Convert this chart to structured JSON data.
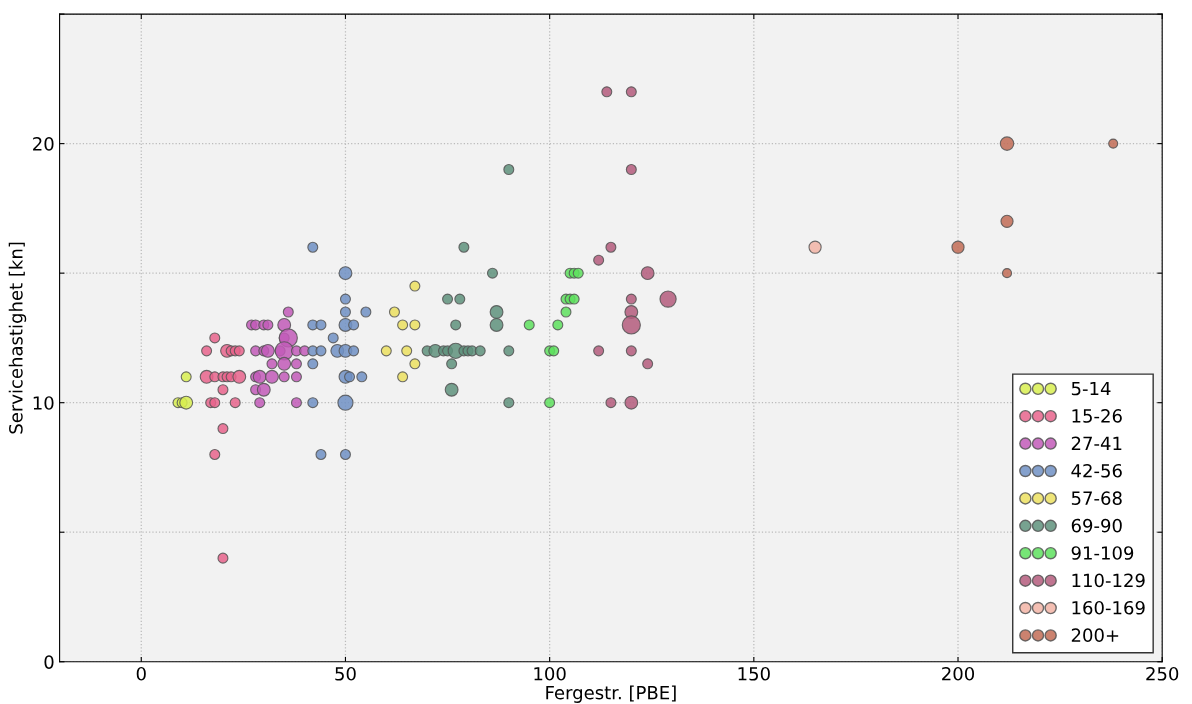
{
  "chart_data": {
    "type": "bubble",
    "xlabel": "Fergestr. [PBE]",
    "ylabel": "Servicehastighet [kn]",
    "xlim": [
      -20,
      250
    ],
    "xticks": [
      0,
      50,
      100,
      150,
      200,
      250
    ],
    "ylim": [
      0,
      25
    ],
    "yticks": [
      0,
      {
        "value": 5,
        "label": null
      },
      10,
      {
        "value": 15,
        "label": null
      },
      20,
      {
        "value": 25,
        "label": null
      }
    ],
    "grid": true,
    "legend": "bottom right",
    "marker": "circle",
    "series": [
      {
        "name": "5-14",
        "color": "#d8ee50",
        "x": [
          9,
          10,
          11,
          11
        ],
        "values": [
          10,
          10,
          10,
          11
        ],
        "sizes": [
          0.3,
          0.3,
          0.5,
          0.3
        ]
      },
      {
        "name": "15-26",
        "color": "#e8648c",
        "x": [
          18,
          16,
          21,
          22,
          23,
          24,
          16,
          18,
          20,
          21,
          22,
          24,
          20,
          17,
          18,
          23,
          20,
          18,
          20
        ],
        "values": [
          12.5,
          12,
          12,
          12,
          12,
          12,
          11,
          11,
          11,
          11,
          11,
          11,
          10.5,
          10,
          10,
          10,
          9,
          8,
          4
        ],
        "sizes": [
          0.3,
          0.3,
          0.5,
          0.3,
          0.3,
          0.3,
          0.5,
          0.3,
          0.3,
          0.3,
          0.3,
          0.5,
          0.3,
          0.3,
          0.3,
          0.3,
          0.3,
          0.3,
          0.3
        ]
      },
      {
        "name": "27-41",
        "color": "#c25ab8",
        "x": [
          27,
          28,
          30,
          31,
          35,
          36,
          35,
          36,
          28,
          30,
          31,
          34,
          35,
          38,
          40,
          32,
          35,
          38,
          28,
          29,
          32,
          35,
          38,
          28,
          30,
          29,
          38
        ],
        "values": [
          13,
          13,
          13,
          13,
          13,
          13.5,
          12.5,
          12.5,
          12,
          12,
          12,
          12,
          12,
          12,
          12,
          11.5,
          11.5,
          11.5,
          11,
          11,
          11,
          11,
          11,
          10.5,
          10.5,
          10,
          10
        ],
        "sizes": [
          0.3,
          0.3,
          0.3,
          0.3,
          0.5,
          0.3,
          0.3,
          1,
          0.3,
          0.3,
          0.5,
          0.3,
          1,
          0.3,
          0.3,
          0.3,
          0.5,
          0.3,
          0.3,
          0.5,
          0.5,
          0.3,
          0.3,
          0.3,
          0.5,
          0.3,
          0.3
        ]
      },
      {
        "name": "42-56",
        "color": "#7090c4",
        "x": [
          42,
          50,
          50,
          55,
          50,
          42,
          44,
          50,
          52,
          47,
          42,
          44,
          48,
          50,
          52,
          42,
          50,
          51,
          54,
          42,
          50,
          44,
          50
        ],
        "values": [
          16,
          15,
          14,
          13.5,
          13.5,
          13,
          13,
          13,
          13,
          12.5,
          12,
          12,
          12,
          12,
          12,
          11.5,
          11,
          11,
          11,
          10,
          10,
          8,
          8
        ],
        "sizes": [
          0.3,
          0.5,
          0.3,
          0.3,
          0.3,
          0.3,
          0.3,
          0.5,
          0.3,
          0.3,
          0.3,
          0.3,
          0.5,
          0.5,
          0.3,
          0.3,
          0.5,
          0.3,
          0.3,
          0.3,
          0.7,
          0.3,
          0.3
        ]
      },
      {
        "name": "57-68",
        "color": "#ece060",
        "x": [
          67,
          62,
          64,
          67,
          60,
          65,
          67,
          64
        ],
        "values": [
          14.5,
          13.5,
          13,
          13,
          12,
          12,
          11.5,
          11
        ],
        "sizes": [
          0.3,
          0.3,
          0.3,
          0.3,
          0.3,
          0.3,
          0.3,
          0.3
        ]
      },
      {
        "name": "69-90",
        "color": "#5f927c",
        "x": [
          90,
          79,
          86,
          75,
          78,
          87,
          77,
          87,
          70,
          72,
          74,
          75,
          77,
          79,
          80,
          81,
          83,
          90,
          76,
          76,
          90
        ],
        "values": [
          19,
          16,
          15,
          14,
          14,
          13.5,
          13,
          13,
          12,
          12,
          12,
          12,
          12,
          12,
          12,
          12,
          12,
          12,
          11.5,
          10.5,
          10
        ],
        "sizes": [
          0.3,
          0.3,
          0.3,
          0.3,
          0.3,
          0.5,
          0.3,
          0.5,
          0.3,
          0.5,
          0.3,
          0.3,
          0.7,
          0.3,
          0.3,
          0.3,
          0.3,
          0.3,
          0.3,
          0.5,
          0.3
        ]
      },
      {
        "name": "91-109",
        "color": "#5ee05e",
        "x": [
          105,
          106,
          107,
          104,
          105,
          106,
          104,
          95,
          102,
          100,
          101,
          100
        ],
        "values": [
          15,
          15,
          15,
          14,
          14,
          14,
          13.5,
          13,
          13,
          12,
          12,
          10
        ],
        "sizes": [
          0.3,
          0.3,
          0.3,
          0.3,
          0.3,
          0.3,
          0.3,
          0.3,
          0.3,
          0.3,
          0.3,
          0.3
        ]
      },
      {
        "name": "110-129",
        "color": "#b45c7c",
        "x": [
          114,
          120,
          120,
          115,
          112,
          124,
          120,
          129,
          120,
          120,
          112,
          120,
          124,
          115,
          120
        ],
        "values": [
          22,
          22,
          19,
          16,
          15.5,
          15,
          14,
          14,
          13.5,
          13,
          12,
          12,
          11.5,
          10,
          10
        ],
        "sizes": [
          0.3,
          0.3,
          0.3,
          0.3,
          0.3,
          0.5,
          0.3,
          0.8,
          0.5,
          1,
          0.3,
          0.3,
          0.3,
          0.3,
          0.5
        ]
      },
      {
        "name": "160-169",
        "color": "#f2b4a6",
        "x": [
          165
        ],
        "values": [
          16
        ],
        "sizes": [
          0.45
        ]
      },
      {
        "name": "200+",
        "color": "#c26c56",
        "x": [
          212,
          238,
          212,
          200,
          212
        ],
        "values": [
          20,
          20,
          17,
          16,
          15
        ],
        "sizes": [
          0.55,
          0.25,
          0.45,
          0.45,
          0.25
        ]
      }
    ]
  }
}
